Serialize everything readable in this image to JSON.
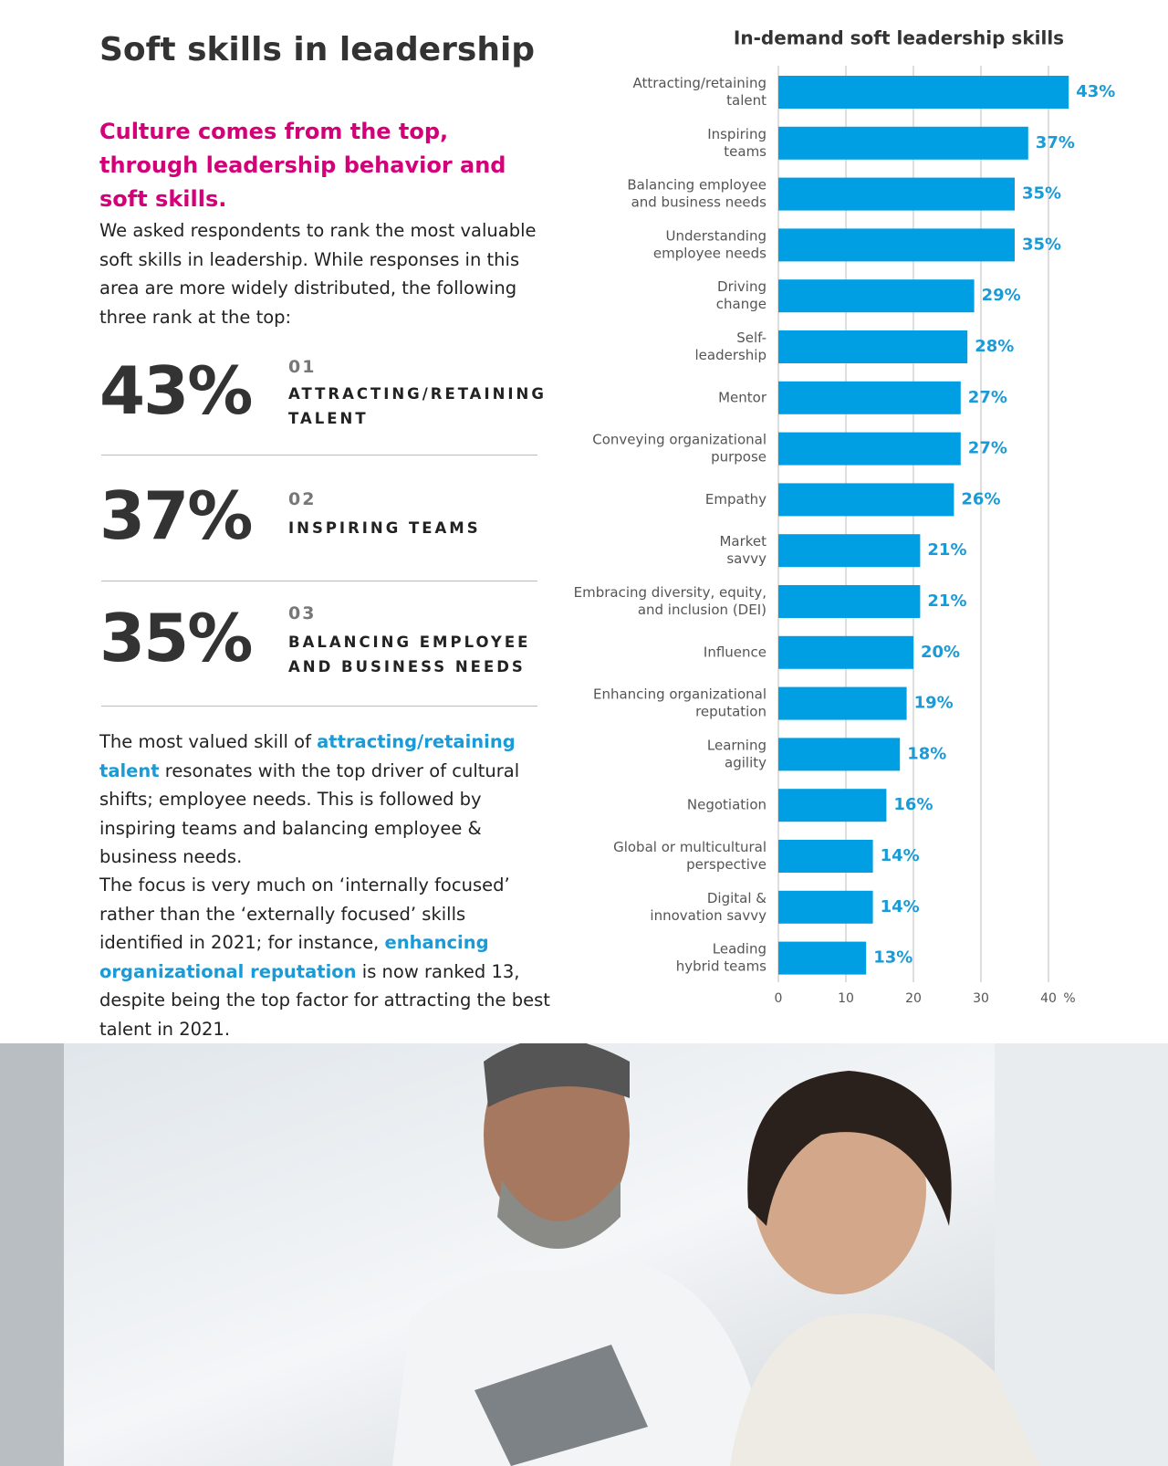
{
  "header": {
    "title": "Soft skills in leadership",
    "subtitle": "Culture comes from the top, through leadership behavior and soft skills."
  },
  "intro": "We asked respondents to rank the most valuable soft skills in leadership. While responses in this area are more widely distributed, the following three rank at the top:",
  "stats": [
    {
      "value": "43%",
      "rank": "01",
      "label": "ATTRACTING/RETAINING TALENT"
    },
    {
      "value": "37%",
      "rank": "02",
      "label": "INSPIRING TEAMS"
    },
    {
      "value": "35%",
      "rank": "03",
      "label": "BALANCING EMPLOYEE AND BUSINESS NEEDS"
    }
  ],
  "paragraphs": [
    {
      "before": "The most valued skill of ",
      "link": "attracting/retaining talent",
      "after": " resonates with the top driver of cultural shifts; employee needs. This is followed by inspiring teams and balancing employee & business needs."
    },
    {
      "before": "The focus is very much on ‘internally focused’ rather than the ‘externally focused’ skills identified in 2021; for instance, ",
      "link": "enhancing organizational reputation",
      "after": " is now ranked 13, despite being the top factor for attracting the best talent in 2021."
    }
  ],
  "chart_data": {
    "type": "hbar",
    "title": "In-demand soft leadership skills",
    "categories": [
      [
        "Attracting/retaining",
        "talent"
      ],
      [
        "Inspiring",
        "teams"
      ],
      [
        "Balancing employee",
        "and business needs"
      ],
      [
        "Understanding",
        "employee needs"
      ],
      [
        "Driving",
        "change"
      ],
      [
        "Self-",
        "leadership"
      ],
      [
        "Mentor"
      ],
      [
        "Conveying organizational",
        "purpose"
      ],
      [
        "Empathy"
      ],
      [
        "Market",
        "savvy"
      ],
      [
        "Embracing diversity, equity,",
        "and inclusion (DEI)"
      ],
      [
        "Influence"
      ],
      [
        "Enhancing organizational",
        "reputation"
      ],
      [
        "Learning",
        "agility"
      ],
      [
        "Negotiation"
      ],
      [
        "Global or multicultural",
        "perspective"
      ],
      [
        "Digital &",
        "innovation savvy"
      ],
      [
        "Leading",
        "hybrid teams"
      ]
    ],
    "values": [
      43,
      37,
      35,
      35,
      29,
      28,
      27,
      27,
      26,
      21,
      21,
      20,
      19,
      18,
      16,
      14,
      14,
      13
    ],
    "value_labels": [
      "43%",
      "37%",
      "35%",
      "35%",
      "29%",
      "28%",
      "27%",
      "27%",
      "26%",
      "21%",
      "21%",
      "20%",
      "19%",
      "18%",
      "16%",
      "14%",
      "14%",
      "13%"
    ],
    "color": "#009fe3",
    "label_color": "#1a9ad6",
    "xlim": [
      0,
      45
    ],
    "xticks": [
      0,
      10,
      20,
      30,
      40
    ],
    "x_label": "%",
    "grid": true
  }
}
